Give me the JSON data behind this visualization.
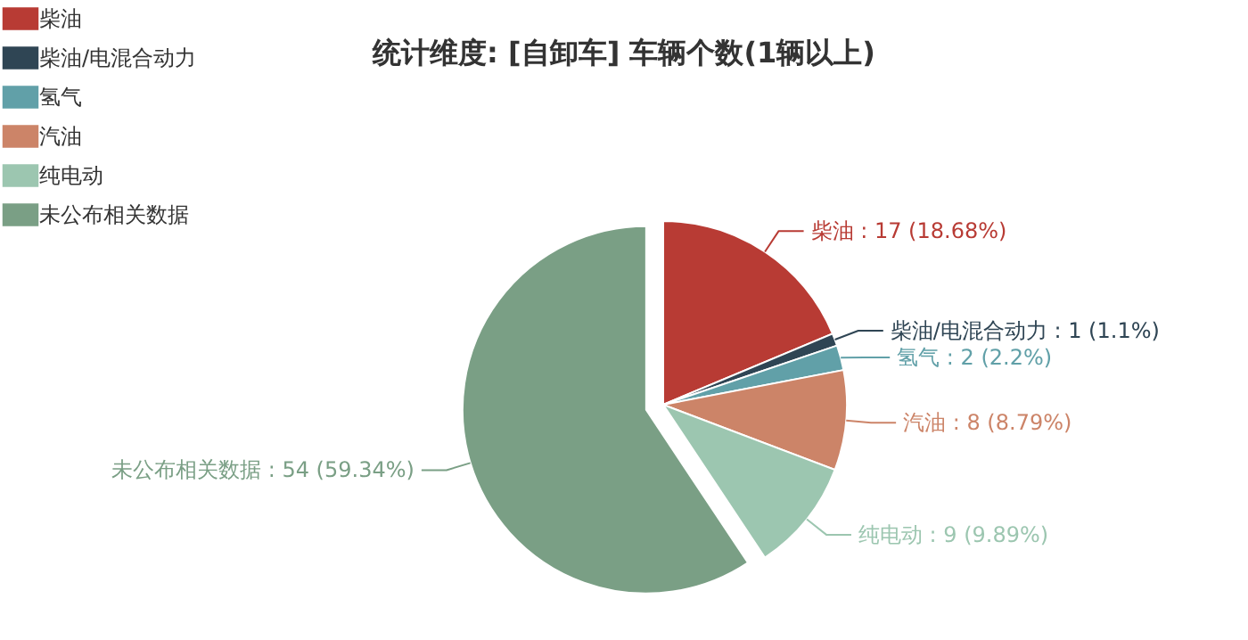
{
  "chart_data": {
    "type": "pie",
    "title": "统计维度: [自卸车] 车辆个数(1辆以上)",
    "categories": [
      "柴油",
      "柴油/电混合动力",
      "氢气",
      "汽油",
      "纯电动",
      "未公布相关数据"
    ],
    "values": [
      17,
      1,
      2,
      8,
      9,
      54
    ],
    "colors": [
      "#b83b34",
      "#2f4554",
      "#61a0a8",
      "#cc8468",
      "#9cc6b0",
      "#7a9f85"
    ],
    "value_labels": [
      "柴油 : 17 (18.68%)",
      "柴油/电混合动力 : 1 (1.1%)",
      "氢气 : 2 (2.2%)",
      "汽油 : 8 (8.79%)",
      "纯电动 : 9 (9.89%)",
      "未公布相关数据 : 54 (59.34%)"
    ],
    "legend": "top left"
  }
}
